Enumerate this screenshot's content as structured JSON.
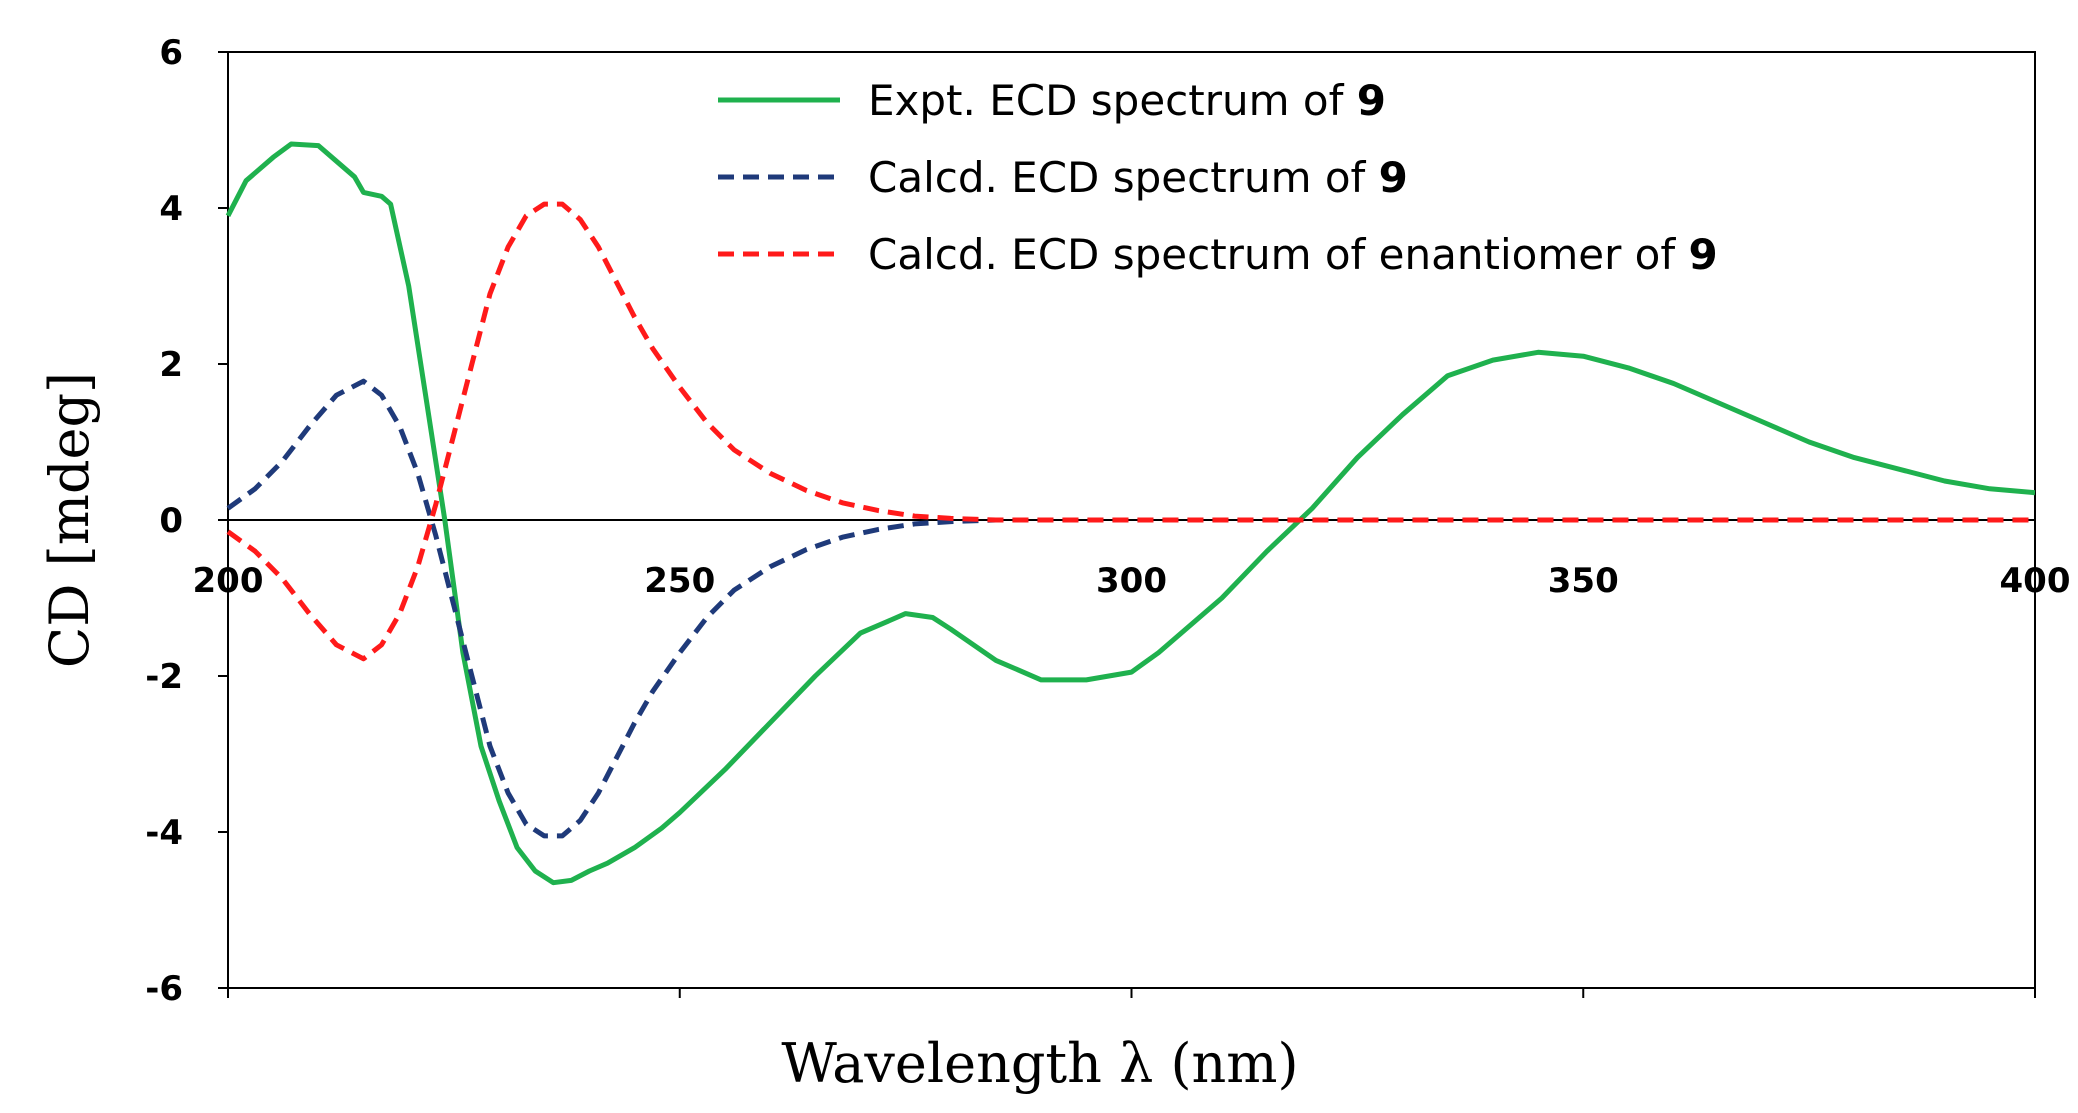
{
  "chart_data": {
    "type": "line",
    "title": "",
    "xlabel": "Wavelength λ (nm)",
    "ylabel": "CD [mdeg]",
    "xlim": [
      200,
      400
    ],
    "ylim": [
      -6,
      6
    ],
    "xticks": [
      "200",
      "250",
      "300",
      "350",
      "400"
    ],
    "yticks": [
      "6",
      "4",
      "2",
      "0",
      "-2",
      "-4",
      "-6"
    ],
    "grid": false,
    "legend_position": "top-right",
    "series": [
      {
        "name": "Expt. ECD spectrum of 9",
        "legend_prefix": "Expt. ECD spectrum of ",
        "legend_bold": "9",
        "color": "#1fb14e",
        "dash": "solid",
        "x": [
          200,
          202,
          205,
          207,
          210,
          212,
          214,
          215,
          217,
          218,
          220,
          222,
          224,
          226,
          228,
          230,
          232,
          234,
          236,
          238,
          240,
          242,
          245,
          248,
          250,
          255,
          260,
          265,
          270,
          273,
          275,
          278,
          280,
          285,
          290,
          295,
          300,
          303,
          305,
          310,
          315,
          320,
          325,
          330,
          335,
          340,
          345,
          350,
          355,
          360,
          365,
          370,
          375,
          380,
          385,
          390,
          395,
          400
        ],
        "y": [
          3.9,
          4.35,
          4.65,
          4.82,
          4.8,
          4.6,
          4.4,
          4.2,
          4.15,
          4.05,
          3.0,
          1.5,
          0.0,
          -1.7,
          -2.9,
          -3.6,
          -4.2,
          -4.5,
          -4.65,
          -4.62,
          -4.5,
          -4.4,
          -4.2,
          -3.95,
          -3.75,
          -3.2,
          -2.6,
          -2.0,
          -1.45,
          -1.3,
          -1.2,
          -1.25,
          -1.4,
          -1.8,
          -2.05,
          -2.05,
          -1.95,
          -1.7,
          -1.5,
          -1.0,
          -0.4,
          0.15,
          0.8,
          1.35,
          1.85,
          2.05,
          2.15,
          2.1,
          1.95,
          1.75,
          1.5,
          1.25,
          1.0,
          0.8,
          0.65,
          0.5,
          0.4,
          0.35
        ]
      },
      {
        "name": "Calcd. ECD spectrum of 9",
        "legend_prefix": "Calcd. ECD spectrum of ",
        "legend_bold": "9",
        "color": "#1f3a7a",
        "dash": "dashed",
        "x": [
          200,
          203,
          206,
          209,
          212,
          215,
          217,
          219,
          221,
          223,
          225,
          227,
          229,
          231,
          233,
          235,
          237,
          239,
          241,
          243,
          245,
          247,
          250,
          253,
          256,
          260,
          264,
          268,
          272,
          276,
          280,
          285,
          290,
          300,
          320,
          340,
          360,
          380,
          400
        ],
        "y": [
          0.15,
          0.4,
          0.75,
          1.2,
          1.6,
          1.78,
          1.6,
          1.2,
          0.6,
          -0.2,
          -1.1,
          -2.0,
          -2.9,
          -3.5,
          -3.9,
          -4.05,
          -4.05,
          -3.85,
          -3.5,
          -3.05,
          -2.6,
          -2.2,
          -1.7,
          -1.25,
          -0.9,
          -0.6,
          -0.38,
          -0.22,
          -0.12,
          -0.05,
          -0.02,
          0.0,
          0.0,
          0.0,
          0.0,
          0.0,
          0.0,
          0.0,
          0.0
        ]
      },
      {
        "name": "Calcd. ECD spectrum of enantiomer of 9",
        "legend_prefix": "Calcd. ECD spectrum of enantiomer of ",
        "legend_bold": "9",
        "color": "#ff1a1a",
        "dash": "dashed",
        "x": [
          200,
          203,
          206,
          209,
          212,
          215,
          217,
          219,
          221,
          223,
          225,
          227,
          229,
          231,
          233,
          235,
          237,
          239,
          241,
          243,
          245,
          247,
          250,
          253,
          256,
          260,
          264,
          268,
          272,
          276,
          280,
          285,
          290,
          300,
          320,
          340,
          360,
          380,
          400
        ],
        "y": [
          -0.15,
          -0.4,
          -0.75,
          -1.2,
          -1.6,
          -1.78,
          -1.6,
          -1.2,
          -0.6,
          0.2,
          1.1,
          2.0,
          2.9,
          3.5,
          3.9,
          4.05,
          4.05,
          3.85,
          3.5,
          3.05,
          2.6,
          2.2,
          1.7,
          1.25,
          0.9,
          0.6,
          0.38,
          0.22,
          0.12,
          0.05,
          0.02,
          0.0,
          0.0,
          0.0,
          0.0,
          0.0,
          0.0,
          0.0,
          0.0
        ]
      }
    ]
  }
}
